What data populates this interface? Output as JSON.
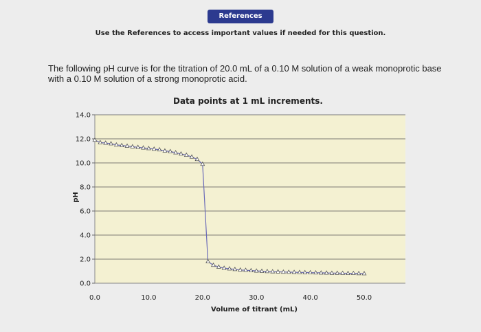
{
  "header": {
    "references_label": "References",
    "references_note": "Use the References to access important values if needed for this question."
  },
  "question": {
    "text": "The following pH curve is for the titration of 20.0 mL of a 0.10 M solution of a weak monoprotic base with a 0.10 M solution of a strong monoprotic acid."
  },
  "colors": {
    "plot_background": "#f4f1d2",
    "curve": "#6a6ab8",
    "marker": "#555555",
    "button": "#2c3a8f"
  },
  "chart_data": {
    "type": "line",
    "title": "Data points at 1 mL increments.",
    "xlabel": "Volume of titrant (mL)",
    "ylabel": "pH",
    "xlim": [
      0,
      50
    ],
    "ylim": [
      0,
      14
    ],
    "x_ticks": [
      "0.0",
      "10.0",
      "20.0",
      "30.0",
      "40.0",
      "50.0"
    ],
    "y_ticks": [
      "0.0",
      "2.0",
      "4.0",
      "6.0",
      "8.0",
      "10.0",
      "12.0",
      "14.0"
    ],
    "grid": "horizontal",
    "marker": "triangle",
    "series": [
      {
        "x": [
          0,
          1,
          2,
          3,
          4,
          5,
          6,
          7,
          8,
          9,
          10,
          11,
          12,
          13,
          14,
          15,
          16,
          17,
          18,
          19,
          20,
          21,
          22,
          23,
          24,
          25,
          26,
          27,
          28,
          29,
          30,
          31,
          32,
          33,
          34,
          35,
          36,
          37,
          38,
          39,
          40,
          41,
          42,
          43,
          44,
          45,
          46,
          47,
          48,
          49,
          50
        ],
        "y": [
          11.9,
          11.7,
          11.65,
          11.6,
          11.5,
          11.45,
          11.4,
          11.35,
          11.3,
          11.25,
          11.2,
          11.15,
          11.1,
          11.0,
          10.95,
          10.85,
          10.75,
          10.65,
          10.5,
          10.3,
          9.9,
          1.8,
          1.5,
          1.35,
          1.25,
          1.2,
          1.15,
          1.1,
          1.08,
          1.05,
          1.02,
          1.0,
          0.98,
          0.96,
          0.95,
          0.93,
          0.92,
          0.91,
          0.9,
          0.89,
          0.88,
          0.87,
          0.86,
          0.85,
          0.84,
          0.84,
          0.83,
          0.82,
          0.82,
          0.81,
          0.8
        ]
      }
    ]
  }
}
